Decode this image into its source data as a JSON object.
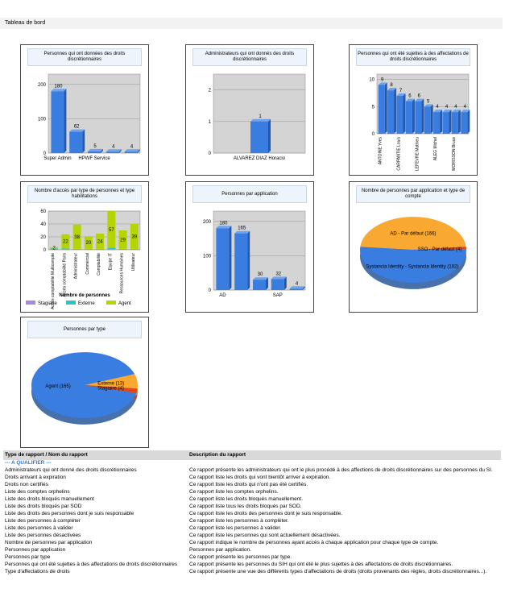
{
  "header": {
    "title": "Tableau de bord"
  },
  "chart_data": [
    {
      "type": "bar",
      "title": "Personnes qui ont données des droits discrétionnaires",
      "categories": [
        "Super Admin",
        null,
        "HPWF Service",
        null,
        null
      ],
      "values": [
        180,
        62,
        5,
        4,
        4
      ],
      "color": "#3a7de0",
      "ylim": [
        0,
        230
      ],
      "yticks": [
        0,
        100,
        200
      ],
      "grid": true
    },
    {
      "type": "bar",
      "title": "Administrateurs qui ont donnés des droits discrétionnaires",
      "categories": [
        "ALVAREZ DIAZ Horacio"
      ],
      "values": [
        1
      ],
      "color": "#3a7de0",
      "ylim": [
        0,
        2.5
      ],
      "yticks": [
        0,
        1,
        2
      ],
      "grid": true
    },
    {
      "type": "bar",
      "title": "Personnes qui ont été sujettes à des affectations de droits discrétionnaires",
      "categories": [
        "ANTOINE Yves",
        null,
        "CARPANTIE Louis",
        null,
        "LEFEVRE Mathieu",
        null,
        "ALEG Michel",
        null,
        "MORISSON Bruce",
        null
      ],
      "values": [
        9,
        8,
        7,
        6,
        6,
        5,
        4,
        4,
        4,
        4
      ],
      "color": "#3a7de0",
      "ylim": [
        0,
        11
      ],
      "yticks": [
        0,
        5,
        10
      ],
      "grid": true
    },
    {
      "type": "bar",
      "stacked": true,
      "title": "Nombre d'accès par type de personnes et type habilitations",
      "categories": [
        "Accès comptabilité Multicompte",
        "Accès comptabilité Paris",
        "Administrateur",
        "Commercial",
        "Comptabilité",
        "Equipe IT",
        "Ressources Humaines",
        "Utilisateur"
      ],
      "series": [
        {
          "name": "Stagiaire",
          "color": "#a98ad8",
          "values": [
            0,
            1,
            0,
            0,
            0,
            1,
            0,
            0
          ]
        },
        {
          "name": "Externe",
          "color": "#2ec4c4",
          "values": [
            2,
            1,
            1,
            1,
            1,
            2,
            1,
            1
          ]
        },
        {
          "name": "Agent",
          "color": "#b5d400",
          "values": [
            2,
            22,
            38,
            20,
            24,
            57,
            29,
            39
          ]
        }
      ],
      "legend_title": "Nombre de personnes",
      "ylim": [
        0,
        60
      ],
      "yticks": [
        0,
        20,
        40,
        60
      ],
      "grid": true
    },
    {
      "type": "bar",
      "title": "Personnes par application",
      "categories": [
        "AD",
        null,
        null,
        "SAP",
        null
      ],
      "values": [
        180,
        165,
        30,
        32,
        4
      ],
      "color": "#3a7de0",
      "ylim": [
        0,
        230
      ],
      "yticks": [
        0,
        100,
        200
      ],
      "grid": true
    },
    {
      "type": "pie",
      "title": "Nombre de personnes par application et type de compte",
      "categories": [
        "AD - Par défaut (166)",
        "SSO - Par défaut (4)",
        "Systancia Identity - Systancia Identity (182)"
      ],
      "values": [
        166,
        4,
        182
      ],
      "colors": [
        "#f9a832",
        "#e0461a",
        "#3a7de0"
      ]
    },
    {
      "type": "pie",
      "title": "Personnes par type",
      "categories": [
        "Agent (165)",
        "Externe (13)",
        "Stagiaire (4)"
      ],
      "values": [
        165,
        13,
        4
      ],
      "colors": [
        "#3a7de0",
        "#f9a832",
        "#e0461a"
      ]
    }
  ],
  "table": {
    "columns": [
      "Type de rapport / Nom du rapport",
      "Description du rapport"
    ],
    "group": "--- A QUALIFIER ---",
    "rows": [
      [
        "Administrateurs qui ont donné des droits discrétionnaires",
        "Ce rapport présente les administrateurs qui ont le plus procédé à des affections de droits discrétionnaires sur des personnes du SI."
      ],
      [
        "Droits arrivant à expiration",
        "Ce rapport liste les droits qui vont bientôt arriver à expiration."
      ],
      [
        "Droits non certifiés",
        "Ce rapport liste les droits qui n'ont pas été certifiés."
      ],
      [
        "Liste des comptes orphelins",
        "Ce rapport liste les comptes orphelins."
      ],
      [
        "Liste des droits bloqués manuellement",
        "Ce rapport liste les droits bloqués manuellement."
      ],
      [
        "Liste des droits bloqués par SOD",
        "Ce rapport liste tous les droits bloqués par SOD."
      ],
      [
        "Liste des droits des personnes dont je suis responsable",
        "Ce rapport liste les droits des personnes dont je suis responsable."
      ],
      [
        "Liste des personnes à compléter",
        "Ce rapport liste les personnes à compléter."
      ],
      [
        "Liste des personnes à valider",
        "Ce rapport liste les personnes à valider."
      ],
      [
        "Liste des personnes désactivées",
        "Ce rapport liste les personnes qui sont actuellement désactivées."
      ],
      [
        "Nombre de personnes par application",
        "Ce rapport indique le nombre de personnes ayant accès à chaque application pour chaque type de compte."
      ],
      [
        "Personnes par application",
        "Personnes par application."
      ],
      [
        "Personnes par type",
        "Ce rapport présente les personnes par type."
      ],
      [
        "Personnes qui ont été sujettes à des affectations de droits discrétionnaires",
        "Ce rapport présente les personnes du SIH qui ont été le plus sujettes à des affectations de droits discrétionnaires."
      ],
      [
        "Type d'affectations de droits",
        "Ce rapport présente une vue des différents types d'affectations de droits (droits provenants des règles, droits discrétionnaires...)."
      ]
    ]
  }
}
